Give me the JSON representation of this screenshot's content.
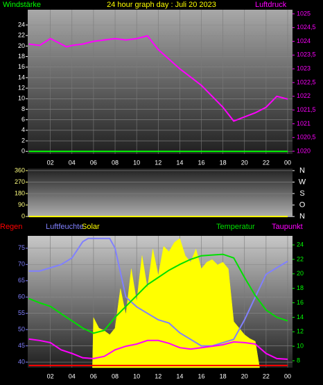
{
  "chart_data": [
    {
      "type": "line",
      "title": "24 hour graph day : Juli 20 2023",
      "xlim": [
        -0.1,
        24.45
      ],
      "xticks": [
        {
          "value": 2,
          "label": "02"
        },
        {
          "value": 4,
          "label": "04"
        },
        {
          "value": 6,
          "label": "06"
        },
        {
          "value": 8,
          "label": "08"
        },
        10,
        12,
        14,
        16,
        18,
        20,
        22,
        {
          "value": 24,
          "label": "00"
        }
      ],
      "ylim": [
        -0.5,
        26.9
      ],
      "yticks": [
        0,
        2,
        4,
        6,
        8,
        10,
        12,
        14,
        16,
        18,
        20,
        22,
        24
      ],
      "ytick_color": "#ffffff",
      "y2lim": [
        1019.9,
        1025.15
      ],
      "y2ticks": [
        1020,
        {
          "value": 1020.5,
          "label": "1020,5"
        },
        1021,
        {
          "value": 1021.5,
          "label": "1021,5"
        },
        1022,
        {
          "value": 1022.5,
          "label": "1022,5"
        },
        1023,
        {
          "value": 1023.5,
          "label": "1023,5"
        },
        1024,
        {
          "value": 1024.5,
          "label": "1024,5"
        },
        1025
      ],
      "y2tick_color": "#ff00ff",
      "grid": true,
      "series": [
        {
          "name": "Windstärke",
          "color": "#00ff00",
          "axis": "y",
          "x": [
            0,
            24
          ],
          "values": [
            0,
            0
          ]
        },
        {
          "name": "Luftdruck",
          "color": "#ff00ff",
          "axis": "y2",
          "x": [
            0,
            1,
            2,
            3,
            3.5,
            4,
            5,
            6,
            7,
            8,
            9,
            10,
            11,
            12,
            13,
            14,
            15,
            16,
            17,
            18,
            19,
            20,
            21,
            22,
            23,
            24
          ],
          "values": [
            1023.9,
            1023.85,
            1024.1,
            1023.9,
            1023.8,
            1023.85,
            1023.9,
            1024.0,
            1024.05,
            1024.1,
            1024.05,
            1024.1,
            1024.2,
            1023.7,
            1023.35,
            1023.0,
            1022.7,
            1022.4,
            1022.0,
            1021.6,
            1021.1,
            1021.25,
            1021.4,
            1021.6,
            1022.0,
            1021.9
          ]
        }
      ]
    },
    {
      "type": "line",
      "xlim": [
        -0.1,
        24.45
      ],
      "ylim": [
        -5,
        376
      ],
      "yticks": [
        0,
        90,
        180,
        270,
        360
      ],
      "ytick_color": "#ffff80",
      "y2lim": [
        -5,
        376
      ],
      "y2ticks": [
        {
          "value": 0,
          "label": "N"
        },
        {
          "value": 90,
          "label": "O"
        },
        {
          "value": 180,
          "label": "S"
        },
        {
          "value": 270,
          "label": "W"
        },
        {
          "value": 360,
          "label": "N"
        }
      ],
      "y2tick_color": "#ffffff",
      "grid": true,
      "series": [
        {
          "color": "#ffff00",
          "axis": "y",
          "x": [
            0,
            24
          ],
          "values": [
            0,
            0
          ]
        }
      ]
    },
    {
      "type": "line",
      "xlim": [
        -0.1,
        24.45
      ],
      "xticks": [
        {
          "value": 2,
          "label": "02"
        },
        {
          "value": 4,
          "label": "04"
        },
        {
          "value": 6,
          "label": "06"
        },
        {
          "value": 8,
          "label": "08"
        },
        10,
        12,
        14,
        16,
        18,
        20,
        22,
        {
          "value": 24,
          "label": "00"
        }
      ],
      "ylim": [
        38.3,
        78.8
      ],
      "yticks": [
        40,
        45,
        50,
        55,
        60,
        65,
        70,
        75
      ],
      "ytick_color": "#8080ff",
      "y2lim": [
        7.04,
        25.25
      ],
      "y2ticks": [
        8,
        10,
        12,
        14,
        16,
        18,
        20,
        22,
        24
      ],
      "y2tick_color": "#00ff00",
      "y3lim": [
        -0.2,
        12
      ],
      "y4lim": [
        0,
        100
      ],
      "grid": true,
      "series": [
        {
          "name": "Regen",
          "color": "#ff0000",
          "axis": "y3",
          "x": [
            0,
            24
          ],
          "values": [
            0,
            0
          ]
        },
        {
          "name": "Luftfeuchte",
          "color": "#8080ff",
          "axis": "y",
          "x": [
            0,
            1,
            2,
            3,
            4,
            5,
            5.5,
            6,
            7,
            7.5,
            8,
            9,
            10,
            11,
            12,
            13,
            14,
            15,
            16,
            17,
            18,
            19,
            20,
            21,
            22,
            23,
            24
          ],
          "values": [
            68,
            68,
            69,
            70,
            72,
            77,
            78,
            78,
            78,
            78,
            75,
            60,
            57,
            55,
            53,
            52,
            49,
            47,
            45,
            45,
            46,
            47,
            53,
            60,
            67,
            69,
            71
          ]
        },
        {
          "name": "Solar",
          "color": "#ffff00",
          "axis": "y4",
          "kind": "area",
          "x": [
            5.9,
            6,
            6.5,
            7,
            7.5,
            8,
            8.5,
            9,
            9.5,
            10,
            10.5,
            11,
            11.5,
            12,
            12.5,
            13,
            13.5,
            14,
            14.5,
            15,
            15.5,
            16,
            16.5,
            17,
            17.5,
            18,
            18.5,
            19,
            19.5,
            20,
            20.5,
            21,
            21.4
          ],
          "values": [
            0,
            38,
            30,
            28,
            25,
            30,
            60,
            40,
            75,
            50,
            85,
            60,
            90,
            70,
            92,
            88,
            95,
            98,
            85,
            80,
            90,
            75,
            80,
            82,
            78,
            80,
            75,
            35,
            30,
            25,
            22,
            20,
            0
          ]
        },
        {
          "name": "Temperatur",
          "color": "#00e000",
          "axis": "y2",
          "x": [
            0,
            1,
            2,
            3,
            4,
            5,
            6,
            7,
            8,
            9,
            10,
            11,
            12,
            13,
            14,
            15,
            16,
            17,
            18,
            19,
            20,
            21,
            22,
            23,
            24
          ],
          "values": [
            16.6,
            16.0,
            15.5,
            14.5,
            13.5,
            12.5,
            11.8,
            12.2,
            14.0,
            15.5,
            17.0,
            18.5,
            19.5,
            20.5,
            21.3,
            22.0,
            22.5,
            22.6,
            22.7,
            22.2,
            19.5,
            17.0,
            15.0,
            14.0,
            13.5
          ]
        },
        {
          "name": "Taupunkt",
          "color": "#ff00ff",
          "axis": "y2",
          "x": [
            0,
            1,
            2,
            3,
            4,
            5,
            6,
            7,
            8,
            9,
            10,
            11,
            12,
            13,
            14,
            15,
            16,
            17,
            18,
            19,
            20,
            21,
            22,
            23,
            24
          ],
          "values": [
            11.0,
            10.8,
            10.5,
            9.5,
            9.0,
            8.4,
            8.3,
            8.6,
            9.5,
            10.0,
            10.3,
            10.8,
            10.8,
            10.4,
            9.8,
            9.6,
            9.8,
            10.0,
            10.2,
            10.6,
            10.5,
            10.3,
            9.0,
            8.3,
            8.2
          ]
        }
      ]
    }
  ]
}
